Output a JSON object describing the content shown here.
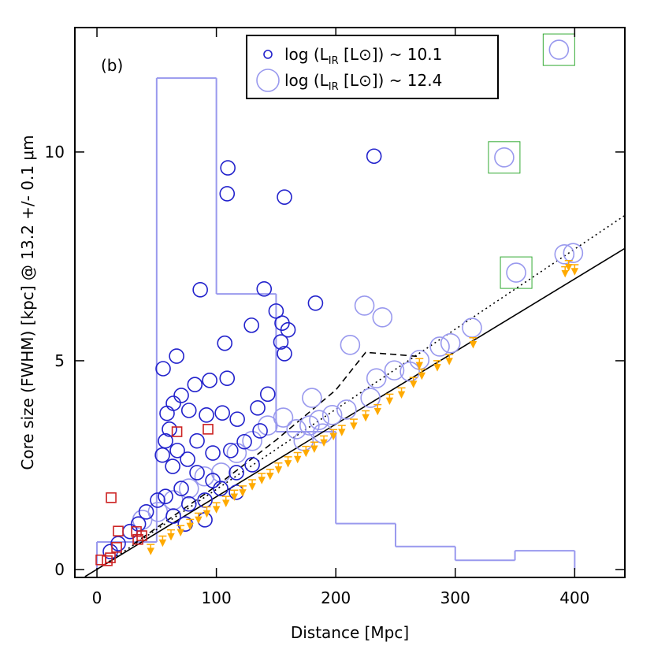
{
  "chart_data": {
    "type": "scatter",
    "panel_label": "(b)",
    "x_label": "Distance [Mpc]",
    "y_label": "Core size (FWHM) [kpc] @ 13.2 +/- 0.1 μm",
    "xlim": [
      -18.5,
      442
    ],
    "ylim": [
      -0.19,
      12.98
    ],
    "xticks": [
      0,
      100,
      200,
      300,
      400
    ],
    "yticks": [
      0,
      5,
      10
    ],
    "histogram": {
      "color": "#9999ee",
      "bins": [
        0,
        50,
        100,
        150,
        200,
        250,
        300,
        350,
        400
      ],
      "values": [
        0.66,
        11.77,
        6.6,
        3.3,
        1.1,
        0.55,
        0.22,
        0.45
      ]
    },
    "lines": [
      {
        "style": "solid",
        "color": "#000000",
        "x": [
          -10,
          442
        ],
        "values": [
          -0.17,
          7.69
        ]
      },
      {
        "style": "dotted",
        "color": "#000000",
        "x": [
          0,
          442
        ],
        "values": [
          0,
          8.48
        ]
      },
      {
        "style": "dashed",
        "color": "#000000",
        "x": [
          30,
          100,
          150,
          200,
          225,
          250,
          270
        ],
        "values": [
          0.6,
          2.0,
          3.1,
          4.3,
          5.2,
          5.15,
          5.1
        ]
      }
    ],
    "series": [
      {
        "name": "log (L",
        "name_sub": "IR",
        "name_rest": " [L⊙]) ~ 12.4",
        "color": "#9999ee",
        "marker": "circle",
        "size": 12,
        "x": [
          386.8,
          341,
          351,
          391.4,
          398.7,
          314,
          296,
          287,
          270,
          262,
          249,
          239,
          224,
          212,
          234,
          229,
          209,
          197,
          186,
          178,
          167,
          180,
          156,
          143,
          130,
          117,
          104,
          90,
          77,
          64,
          51,
          38,
          189,
          173
        ],
        "values": [
          12.45,
          9.87,
          7.11,
          7.55,
          7.58,
          5.79,
          5.42,
          5.34,
          5.02,
          4.74,
          4.77,
          6.04,
          6.32,
          5.38,
          4.58,
          4.11,
          3.83,
          3.7,
          3.58,
          3.45,
          3.36,
          4.11,
          3.64,
          3.45,
          3.08,
          2.79,
          2.32,
          2.23,
          1.94,
          1.66,
          1.38,
          1.19,
          3.26,
          3.08
        ]
      },
      {
        "name": "log (L",
        "name_sub": "IR",
        "name_rest": " [L⊙]) ~ 10.1",
        "color": "#2222cc",
        "marker": "circle",
        "size": 9,
        "x": [
          109.6,
          109,
          157,
          232,
          86.5,
          140,
          183,
          129.4,
          107,
          55.4,
          66.7,
          109,
          94.4,
          82,
          150,
          155,
          160,
          154,
          157,
          143,
          134.6,
          70.6,
          64,
          58.7,
          77,
          91.7,
          105,
          117.5,
          60.7,
          57.4,
          67.3,
          75.9,
          54.8,
          63.4,
          83.8,
          97,
          112,
          123.4,
          136.6,
          83.8,
          97,
          70.6,
          57.4,
          50.8,
          77,
          90.4,
          41.3,
          34.7,
          27.7,
          17.8,
          11.2,
          116.8,
          130,
          103.6,
          116.8,
          64,
          74,
          90.4
        ],
        "values": [
          9.62,
          9.0,
          8.92,
          9.9,
          6.7,
          6.72,
          6.38,
          5.85,
          5.42,
          4.81,
          5.11,
          4.58,
          4.53,
          4.43,
          6.19,
          5.9,
          5.74,
          5.45,
          5.17,
          4.2,
          3.87,
          4.17,
          3.98,
          3.74,
          3.81,
          3.7,
          3.75,
          3.6,
          3.36,
          3.08,
          2.85,
          2.64,
          2.74,
          2.47,
          3.08,
          2.79,
          2.85,
          3.06,
          3.32,
          2.32,
          2.13,
          1.94,
          1.75,
          1.66,
          1.57,
          1.66,
          1.38,
          1.09,
          0.91,
          0.62,
          0.43,
          2.32,
          2.51,
          1.94,
          1.85,
          1.28,
          1.09,
          1.19
        ]
      },
      {
        "color": "#cc2222",
        "marker": "square",
        "size": 6,
        "x": [
          93,
          67,
          11.9,
          17.8,
          33,
          34.3,
          37.6,
          16.5,
          11.2,
          3.3,
          8.6
        ],
        "values": [
          3.36,
          3.3,
          1.72,
          0.92,
          0.91,
          0.72,
          0.81,
          0.53,
          0.28,
          0.23,
          0.21
        ]
      },
      {
        "color": "#ffaa00",
        "marker": "arrow",
        "size": 5,
        "x": [
          45,
          55,
          62,
          70,
          78,
          85,
          92,
          100,
          108,
          115,
          122,
          130,
          138,
          145,
          152,
          160,
          168,
          175,
          182,
          190,
          198,
          205,
          215,
          225,
          235,
          245,
          255,
          265,
          272,
          285,
          295,
          315,
          395,
          400,
          392,
          270
        ],
        "values": [
          0.6,
          0.8,
          0.95,
          1.05,
          1.2,
          1.35,
          1.5,
          1.6,
          1.75,
          1.9,
          2.0,
          2.15,
          2.3,
          2.4,
          2.55,
          2.7,
          2.8,
          2.95,
          3.05,
          3.2,
          3.35,
          3.45,
          3.6,
          3.8,
          3.95,
          4.2,
          4.35,
          4.6,
          4.8,
          5.0,
          5.15,
          5.55,
          7.4,
          7.3,
          7.25,
          5.05
        ]
      },
      {
        "color": "#33aa33",
        "marker": "open-square",
        "size": 20,
        "x": [
          386.8,
          341,
          351
        ],
        "values": [
          12.45,
          9.87,
          7.11
        ]
      }
    ],
    "legend": "top-center"
  }
}
